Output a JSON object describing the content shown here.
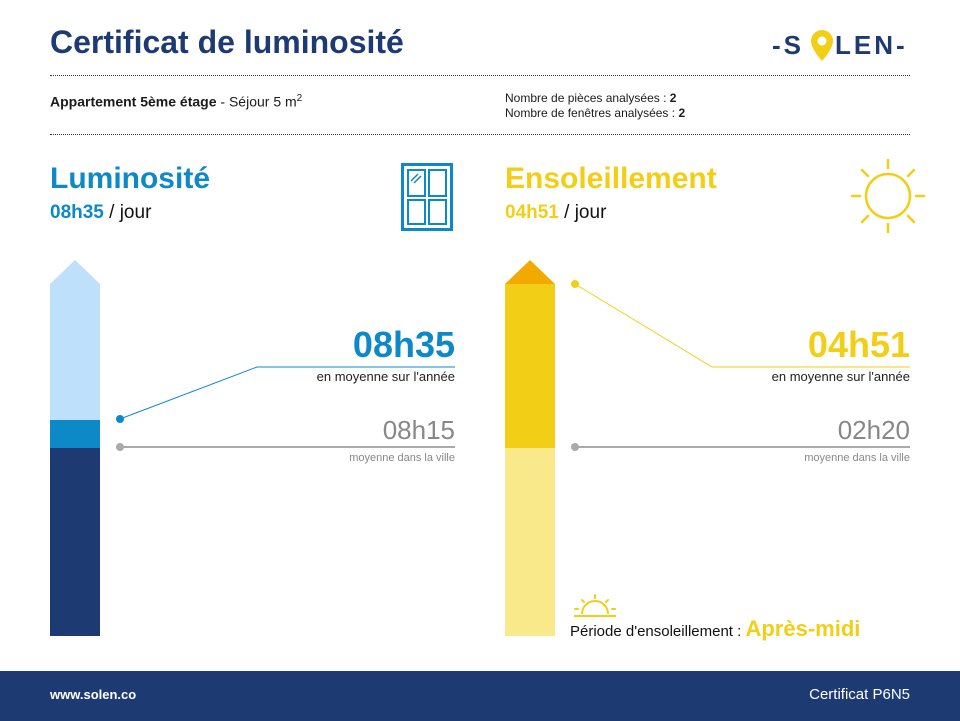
{
  "header": {
    "title": "Certificat de luminosité",
    "logo_left": "-S",
    "logo_right": "LEN-"
  },
  "property": {
    "name": "Appartement 5ème étage",
    "room_prefix": " - Séjour 5 m",
    "room_sup": "2",
    "rooms_label": "Nombre de pièces analysées : ",
    "rooms_value": "2",
    "windows_label": "Nombre de fenêtres analysées : ",
    "windows_value": "2"
  },
  "luminosite": {
    "title": "Luminosité",
    "per_day_value": "08h35",
    "per_day_suffix": " / jour",
    "big_value": "08h35",
    "avg_label": "en moyenne sur l'année",
    "city_value": "08h15",
    "city_label": "moyenne dans la ville",
    "icon": "window-icon"
  },
  "ensoleillement": {
    "title": "Ensoleillement",
    "per_day_value": "04h51",
    "per_day_suffix": " / jour",
    "big_value": "04h51",
    "avg_label": "en moyenne sur l'année",
    "city_value": "02h20",
    "city_label": "moyenne dans la ville",
    "period_label": "Période d'ensoleillement : ",
    "period_value": "Après-midi",
    "icon": "sun-icon",
    "period_icon": "sunset-icon"
  },
  "footer": {
    "website": "www.solen.co",
    "certificate": "Certificat P6N5"
  },
  "colors": {
    "navy": "#1d3a72",
    "blue": "#0e89c8",
    "light_blue": "#bfe0fa",
    "yellow": "#f2cf16",
    "light_yellow": "#f9e98a",
    "orange": "#f2a900",
    "gray": "#888888"
  }
}
